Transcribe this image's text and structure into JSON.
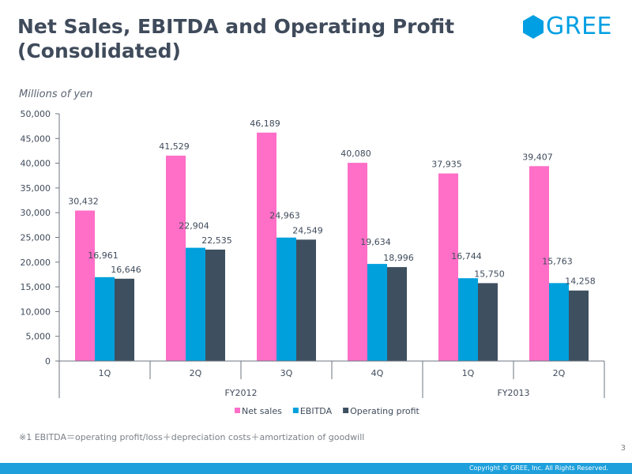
{
  "slide": {
    "title_line1": "Net Sales, EBITDA and Operating Profit",
    "title_line2": "(Consolidated)",
    "units": "Millions of yen",
    "footnote": "※1 EBITDA＝operating profit/loss＋depreciation costs＋amortization of goodwill",
    "page_number": "3",
    "copyright": "Copyright © GREE, Inc. All Rights Reserved."
  },
  "logo": {
    "text": "GREE",
    "icon": "hexagon-logo-icon"
  },
  "colors": {
    "title": "#3f4b5b",
    "net_sales": "#ff6ec7",
    "ebitda": "#00a0dc",
    "operating_profit": "#3e5060",
    "brand": "#009fe3",
    "footer": "#1fa0dc"
  },
  "chart_data": {
    "type": "bar",
    "title": "Net Sales, EBITDA and Operating Profit (Consolidated)",
    "ylabel": "Millions of yen",
    "ylim": [
      0,
      50000
    ],
    "yticks": [
      0,
      5000,
      10000,
      15000,
      20000,
      25000,
      30000,
      35000,
      40000,
      45000,
      50000
    ],
    "ytick_labels": [
      "0",
      "5,000",
      "10,000",
      "15,000",
      "20,000",
      "25,000",
      "30,000",
      "35,000",
      "40,000",
      "45,000",
      "50,000"
    ],
    "categories": [
      "1Q",
      "2Q",
      "3Q",
      "4Q",
      "1Q",
      "2Q"
    ],
    "groups": [
      {
        "label": "FY2012",
        "count": 4
      },
      {
        "label": "FY2013",
        "count": 2
      }
    ],
    "series": [
      {
        "name": "Net sales",
        "color": "#ff6ec7",
        "values": [
          30432,
          41529,
          46189,
          40080,
          37935,
          39407
        ],
        "labels": [
          "30,432",
          "41,529",
          "46,189",
          "40,080",
          "37,935",
          "39,407"
        ]
      },
      {
        "name": "EBITDA",
        "color": "#00a0dc",
        "values": [
          16961,
          22904,
          24963,
          19634,
          16744,
          15763
        ],
        "labels": [
          "16,961",
          "22,904",
          "24,963",
          "19,634",
          "16,744",
          "15,763"
        ]
      },
      {
        "name": "Operating profit",
        "color": "#3e5060",
        "values": [
          16646,
          22535,
          24549,
          18996,
          15750,
          14258
        ],
        "labels": [
          "16,646",
          "22,535",
          "24,549",
          "18,996",
          "15,750",
          "14,258"
        ]
      }
    ],
    "legend_position": "bottom-center",
    "grid": false
  }
}
